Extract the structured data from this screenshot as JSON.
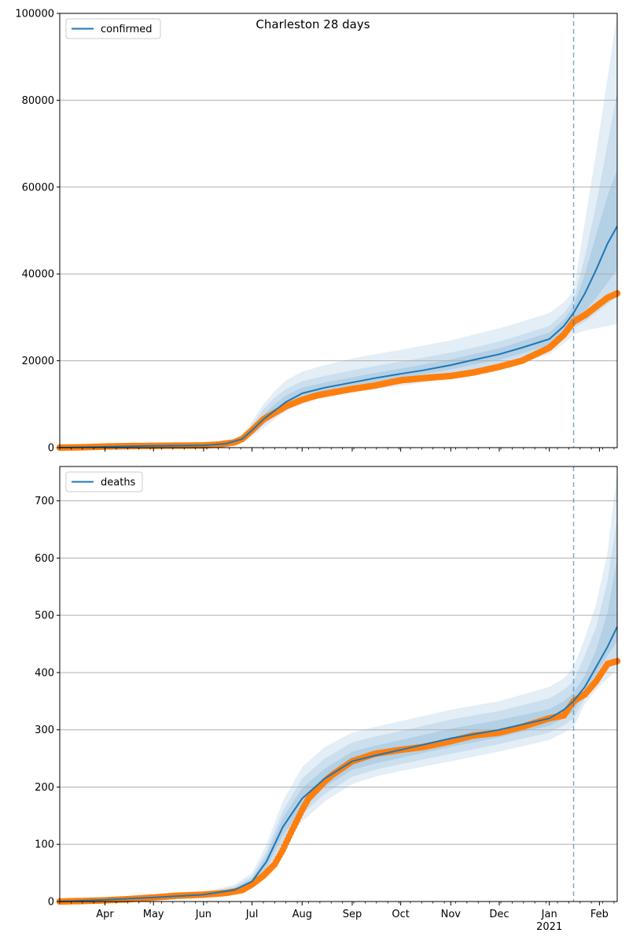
{
  "figure": {
    "title": "Charleston 28 days"
  },
  "colors": {
    "model_line": "#1f77b4",
    "observed": "#ff7f0e",
    "band": "#1f77b4",
    "grid": "#b0b0b0",
    "forecast_marker": "#1f77b4"
  },
  "x_axis": {
    "month_ticks": [
      {
        "date": "2020-04-01",
        "label": "Apr"
      },
      {
        "date": "2020-05-01",
        "label": "May"
      },
      {
        "date": "2020-06-01",
        "label": "Jun"
      },
      {
        "date": "2020-07-01",
        "label": "Jul"
      },
      {
        "date": "2020-08-01",
        "label": "Aug"
      },
      {
        "date": "2020-09-01",
        "label": "Sep"
      },
      {
        "date": "2020-10-01",
        "label": "Oct"
      },
      {
        "date": "2020-11-01",
        "label": "Nov"
      },
      {
        "date": "2020-12-01",
        "label": "Dec"
      },
      {
        "date": "2021-01-01",
        "label": "Jan"
      },
      {
        "date": "2021-02-01",
        "label": "Feb"
      }
    ],
    "year_label": "2021",
    "xlim": [
      "2020-03-04",
      "2021-02-12"
    ]
  },
  "chart_data": [
    {
      "type": "line",
      "legend": "confirmed",
      "legend_position": "top-left",
      "grid": "horizontal",
      "ylim": [
        0,
        100000
      ],
      "yticks": [
        "0",
        "20000",
        "40000",
        "60000",
        "80000",
        "100000"
      ],
      "yticks_values": [
        0,
        20000,
        40000,
        60000,
        80000,
        100000
      ],
      "forecast_start": "2021-01-16",
      "model": {
        "dates": [
          "2020-03-04",
          "2020-04-01",
          "2020-05-01",
          "2020-06-01",
          "2020-06-15",
          "2020-06-25",
          "2020-07-01",
          "2020-07-08",
          "2020-07-15",
          "2020-07-22",
          "2020-08-01",
          "2020-08-15",
          "2020-09-01",
          "2020-09-15",
          "2020-10-01",
          "2020-10-15",
          "2020-11-01",
          "2020-11-15",
          "2020-12-01",
          "2020-12-15",
          "2021-01-01",
          "2021-01-10",
          "2021-01-16",
          "2021-01-23",
          "2021-01-30",
          "2021-02-06",
          "2021-02-12"
        ],
        "values": [
          0,
          200,
          400,
          500,
          900,
          2000,
          4000,
          6500,
          8500,
          10500,
          12500,
          13800,
          15000,
          16000,
          17000,
          17800,
          19000,
          20200,
          21500,
          23000,
          25000,
          28000,
          31000,
          35500,
          41000,
          47000,
          51000
        ]
      },
      "bands": [
        {
          "lower": [
            0,
            150,
            300,
            400,
            700,
            1500,
            2500,
            4500,
            6500,
            8500,
            10500,
            11800,
            12800,
            13500,
            14200,
            15000,
            16000,
            17000,
            18000,
            19500,
            21500,
            24000,
            26000,
            27000,
            27500,
            28000,
            28500
          ],
          "upper": [
            0,
            260,
            520,
            650,
            1200,
            3000,
            6000,
            10000,
            13000,
            15500,
            17500,
            19000,
            20500,
            21500,
            22500,
            23500,
            24700,
            26000,
            27500,
            29000,
            31000,
            33500,
            36000,
            52000,
            68000,
            85000,
            101000
          ]
        },
        {
          "lower": [
            0,
            170,
            340,
            440,
            780,
            1700,
            3000,
            5200,
            7200,
            9200,
            11200,
            12400,
            13500,
            14300,
            15100,
            15800,
            16900,
            18000,
            19000,
            20500,
            22500,
            25200,
            27500,
            29000,
            31000,
            33000,
            35000
          ],
          "upper": [
            0,
            240,
            480,
            600,
            1100,
            2600,
            5200,
            8800,
            11500,
            13500,
            15300,
            16500,
            17800,
            18800,
            19800,
            20700,
            21900,
            23000,
            24400,
            26000,
            28000,
            31000,
            34000,
            44000,
            56000,
            70000,
            82000
          ]
        },
        {
          "lower": [
            0,
            185,
            370,
            470,
            840,
            1850,
            3500,
            5900,
            7900,
            9900,
            11900,
            13100,
            14300,
            15200,
            16100,
            16900,
            18000,
            19100,
            20200,
            21700,
            23700,
            26600,
            29200,
            31500,
            34500,
            38000,
            41000
          ],
          "upper": [
            0,
            220,
            440,
            550,
            1000,
            2300,
            4600,
            7500,
            10000,
            12000,
            13800,
            15000,
            16200,
            17200,
            18200,
            19100,
            20300,
            21500,
            22900,
            24500,
            26500,
            29500,
            32500,
            40000,
            49000,
            58000,
            64000
          ]
        }
      ],
      "observed": {
        "dates": [
          "2020-03-04",
          "2020-03-20",
          "2020-04-01",
          "2020-04-15",
          "2020-05-01",
          "2020-05-15",
          "2020-06-01",
          "2020-06-10",
          "2020-06-20",
          "2020-06-25",
          "2020-07-01",
          "2020-07-08",
          "2020-07-15",
          "2020-07-22",
          "2020-08-01",
          "2020-08-10",
          "2020-08-20",
          "2020-09-01",
          "2020-09-15",
          "2020-10-01",
          "2020-10-15",
          "2020-11-01",
          "2020-11-15",
          "2020-12-01",
          "2020-12-15",
          "2021-01-01",
          "2021-01-10",
          "2021-01-16",
          "2021-01-23",
          "2021-01-30",
          "2021-02-06",
          "2021-02-12"
        ],
        "values": [
          0,
          100,
          250,
          350,
          400,
          450,
          500,
          700,
          1200,
          2000,
          4000,
          6500,
          8000,
          9500,
          11000,
          12000,
          12700,
          13500,
          14300,
          15500,
          16000,
          16500,
          17300,
          18600,
          20000,
          23000,
          26000,
          29000,
          30500,
          32500,
          34500,
          35500
        ]
      }
    },
    {
      "type": "line",
      "legend": "deaths",
      "legend_position": "top-left",
      "grid": "horizontal",
      "ylim": [
        0,
        760
      ],
      "yticks": [
        "0",
        "100",
        "200",
        "300",
        "400",
        "500",
        "600",
        "700"
      ],
      "yticks_values": [
        0,
        100,
        200,
        300,
        400,
        500,
        600,
        700
      ],
      "forecast_start": "2021-01-16",
      "model": {
        "dates": [
          "2020-03-04",
          "2020-04-01",
          "2020-05-01",
          "2020-06-01",
          "2020-06-20",
          "2020-07-01",
          "2020-07-10",
          "2020-07-20",
          "2020-08-01",
          "2020-08-15",
          "2020-09-01",
          "2020-09-15",
          "2020-10-01",
          "2020-11-01",
          "2020-12-01",
          "2021-01-01",
          "2021-01-10",
          "2021-01-16",
          "2021-01-23",
          "2021-01-30",
          "2021-02-06",
          "2021-02-12"
        ],
        "values": [
          0,
          3,
          7,
          12,
          20,
          35,
          70,
          130,
          180,
          215,
          245,
          255,
          265,
          285,
          300,
          320,
          335,
          350,
          375,
          410,
          445,
          480
        ]
      },
      "bands": [
        {
          "lower": [
            0,
            1,
            4,
            8,
            14,
            24,
            45,
            90,
            140,
            175,
            205,
            218,
            228,
            245,
            262,
            282,
            295,
            305,
            345,
            370,
            390,
            405
          ],
          "upper": [
            0,
            5,
            11,
            17,
            29,
            50,
            100,
            175,
            235,
            270,
            295,
            305,
            315,
            335,
            350,
            375,
            390,
            410,
            460,
            520,
            610,
            750
          ]
        },
        {
          "lower": [
            0,
            2,
            5,
            9,
            16,
            28,
            53,
            103,
            153,
            188,
            218,
            230,
            240,
            258,
            275,
            295,
            308,
            320,
            355,
            385,
            410,
            430
          ],
          "upper": [
            0,
            4,
            10,
            15,
            26,
            44,
            88,
            158,
            215,
            250,
            278,
            288,
            298,
            318,
            333,
            355,
            370,
            385,
            430,
            480,
            560,
            670
          ]
        },
        {
          "lower": [
            0,
            2,
            6,
            10,
            18,
            31,
            60,
            115,
            163,
            200,
            230,
            241,
            251,
            270,
            287,
            307,
            320,
            333,
            365,
            398,
            430,
            455
          ],
          "upper": [
            0,
            4,
            9,
            14,
            23,
            40,
            80,
            146,
            198,
            232,
            262,
            272,
            282,
            302,
            317,
            336,
            350,
            365,
            395,
            440,
            505,
            600
          ]
        }
      ],
      "observed": {
        "dates": [
          "2020-03-04",
          "2020-03-20",
          "2020-04-01",
          "2020-04-15",
          "2020-05-01",
          "2020-05-15",
          "2020-06-01",
          "2020-06-15",
          "2020-06-25",
          "2020-07-01",
          "2020-07-08",
          "2020-07-15",
          "2020-07-20",
          "2020-07-25",
          "2020-08-01",
          "2020-08-05",
          "2020-08-10",
          "2020-08-15",
          "2020-08-20",
          "2020-09-01",
          "2020-09-15",
          "2020-10-01",
          "2020-10-15",
          "2020-11-01",
          "2020-11-15",
          "2020-12-01",
          "2020-12-15",
          "2021-01-01",
          "2021-01-10",
          "2021-01-16",
          "2021-01-23",
          "2021-01-30",
          "2021-02-06",
          "2021-02-12"
        ],
        "values": [
          0,
          1,
          2,
          4,
          7,
          10,
          12,
          15,
          20,
          30,
          45,
          65,
          90,
          120,
          160,
          180,
          195,
          210,
          222,
          245,
          258,
          265,
          270,
          280,
          290,
          295,
          305,
          320,
          325,
          350,
          362,
          385,
          415,
          420
        ]
      }
    }
  ]
}
